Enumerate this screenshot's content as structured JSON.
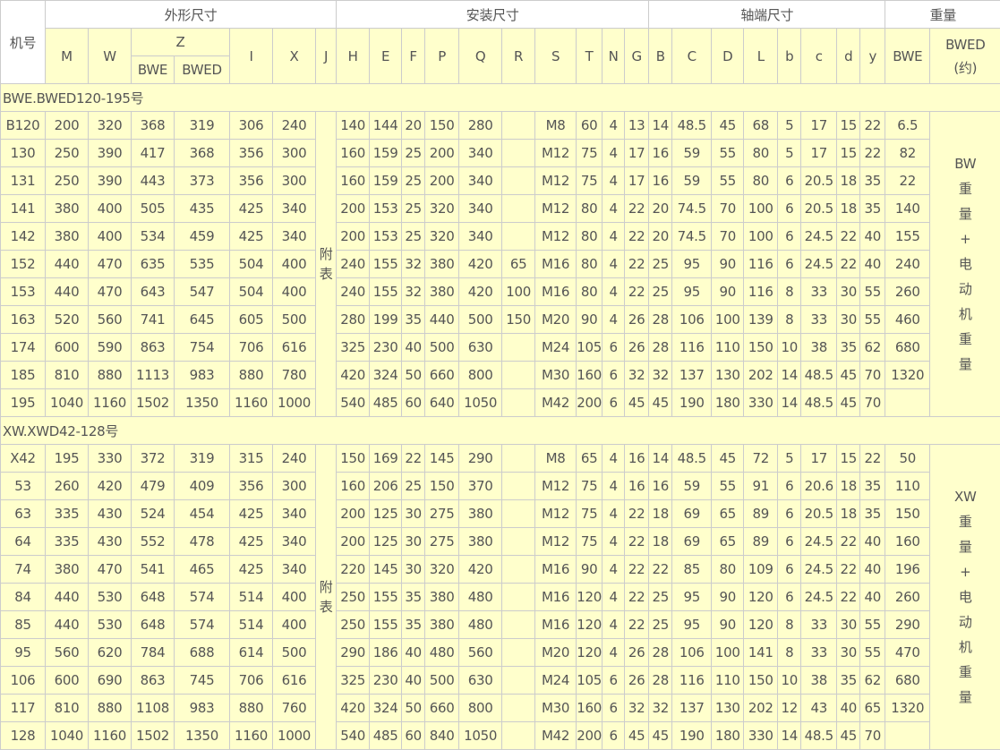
{
  "header": {
    "model": "机号",
    "groups": [
      "外形尺寸",
      "安装尺寸",
      "轴端尺寸",
      "重量"
    ],
    "outline_cols": [
      "M",
      "W",
      "Z",
      "I",
      "X",
      "J"
    ],
    "z_sub": [
      "BWE",
      "BWED"
    ],
    "install_cols": [
      "H",
      "E",
      "F",
      "P",
      "Q",
      "R",
      "S",
      "T",
      "N",
      "G"
    ],
    "shaft_cols": [
      "B",
      "C",
      "D",
      "L",
      "b",
      "c",
      "d",
      "y"
    ],
    "weight_cols": [
      "BWE",
      "BWED"
    ],
    "weight_approx": "(约)"
  },
  "colors": {
    "cell_bg": "#ffffcc",
    "border": "#cccccc",
    "text": "#555555"
  },
  "sections": [
    {
      "title": "BWE.BWED120-195号",
      "appendix": "附表",
      "weight_note": [
        "BW",
        "重",
        "量",
        "+",
        "电",
        "动",
        "机",
        "重",
        "量"
      ],
      "rows": [
        [
          "B120",
          "200",
          "320",
          "368",
          "319",
          "306",
          "240",
          "140",
          "144",
          "20",
          "150",
          "280",
          "",
          "M8",
          "60",
          "4",
          "13",
          "14",
          "48.5",
          "45",
          "68",
          "5",
          "17",
          "15",
          "22",
          "6.5"
        ],
        [
          "130",
          "250",
          "390",
          "417",
          "368",
          "356",
          "300",
          "160",
          "159",
          "25",
          "200",
          "340",
          "",
          "M12",
          "75",
          "4",
          "17",
          "16",
          "59",
          "55",
          "80",
          "5",
          "17",
          "15",
          "22",
          "82"
        ],
        [
          "131",
          "250",
          "390",
          "443",
          "373",
          "356",
          "300",
          "160",
          "159",
          "25",
          "200",
          "340",
          "",
          "M12",
          "75",
          "4",
          "17",
          "16",
          "59",
          "55",
          "80",
          "6",
          "20.5",
          "18",
          "35",
          "22"
        ],
        [
          "141",
          "380",
          "400",
          "505",
          "435",
          "425",
          "340",
          "200",
          "153",
          "25",
          "320",
          "340",
          "",
          "M12",
          "80",
          "4",
          "22",
          "20",
          "74.5",
          "70",
          "100",
          "6",
          "20.5",
          "18",
          "35",
          "140"
        ],
        [
          "142",
          "380",
          "400",
          "534",
          "459",
          "425",
          "340",
          "200",
          "153",
          "25",
          "320",
          "340",
          "",
          "M12",
          "80",
          "4",
          "22",
          "20",
          "74.5",
          "70",
          "100",
          "6",
          "24.5",
          "22",
          "40",
          "155"
        ],
        [
          "152",
          "440",
          "470",
          "635",
          "535",
          "504",
          "400",
          "240",
          "155",
          "32",
          "380",
          "420",
          "65",
          "M16",
          "80",
          "4",
          "22",
          "25",
          "95",
          "90",
          "116",
          "6",
          "24.5",
          "22",
          "40",
          "240"
        ],
        [
          "153",
          "440",
          "470",
          "643",
          "547",
          "504",
          "400",
          "240",
          "155",
          "32",
          "380",
          "420",
          "100",
          "M16",
          "80",
          "4",
          "22",
          "25",
          "95",
          "90",
          "116",
          "8",
          "33",
          "30",
          "55",
          "260"
        ],
        [
          "163",
          "520",
          "560",
          "741",
          "645",
          "605",
          "500",
          "280",
          "199",
          "35",
          "440",
          "500",
          "150",
          "M20",
          "90",
          "4",
          "26",
          "28",
          "106",
          "100",
          "139",
          "8",
          "33",
          "30",
          "55",
          "460"
        ],
        [
          "174",
          "600",
          "590",
          "863",
          "754",
          "706",
          "616",
          "325",
          "230",
          "40",
          "500",
          "630",
          "",
          "M24",
          "105",
          "6",
          "26",
          "28",
          "116",
          "110",
          "150",
          "10",
          "38",
          "35",
          "62",
          "680"
        ],
        [
          "185",
          "810",
          "880",
          "1113",
          "983",
          "880",
          "780",
          "420",
          "324",
          "50",
          "660",
          "800",
          "",
          "M30",
          "160",
          "6",
          "32",
          "32",
          "137",
          "130",
          "202",
          "14",
          "48.5",
          "45",
          "70",
          "1320"
        ],
        [
          "195",
          "1040",
          "1160",
          "1502",
          "1350",
          "1160",
          "1000",
          "540",
          "485",
          "60",
          "640",
          "1050",
          "",
          "M42",
          "200",
          "6",
          "45",
          "45",
          "190",
          "180",
          "330",
          "14",
          "48.5",
          "45",
          "70",
          ""
        ]
      ]
    },
    {
      "title": "XW.XWD42-128号",
      "appendix": "附表",
      "weight_note": [
        "XW",
        "重",
        "量",
        "+",
        "电",
        "动",
        "机",
        "重",
        "量"
      ],
      "rows": [
        [
          "X42",
          "195",
          "330",
          "372",
          "319",
          "315",
          "240",
          "150",
          "169",
          "22",
          "145",
          "290",
          "",
          "M8",
          "65",
          "4",
          "16",
          "14",
          "48.5",
          "45",
          "72",
          "5",
          "17",
          "15",
          "22",
          "50"
        ],
        [
          "53",
          "260",
          "420",
          "479",
          "409",
          "356",
          "300",
          "160",
          "206",
          "25",
          "150",
          "370",
          "",
          "M12",
          "75",
          "4",
          "16",
          "16",
          "59",
          "55",
          "91",
          "6",
          "20.6",
          "18",
          "35",
          "110"
        ],
        [
          "63",
          "335",
          "430",
          "524",
          "454",
          "425",
          "340",
          "200",
          "125",
          "30",
          "275",
          "380",
          "",
          "M12",
          "75",
          "4",
          "22",
          "18",
          "69",
          "65",
          "89",
          "6",
          "20.5",
          "18",
          "35",
          "150"
        ],
        [
          "64",
          "335",
          "430",
          "552",
          "478",
          "425",
          "340",
          "200",
          "125",
          "30",
          "275",
          "380",
          "",
          "M12",
          "75",
          "4",
          "22",
          "18",
          "69",
          "65",
          "89",
          "6",
          "24.5",
          "22",
          "40",
          "160"
        ],
        [
          "74",
          "380",
          "470",
          "541",
          "465",
          "425",
          "340",
          "220",
          "145",
          "30",
          "320",
          "420",
          "",
          "M16",
          "90",
          "4",
          "22",
          "22",
          "85",
          "80",
          "109",
          "6",
          "24.5",
          "22",
          "40",
          "196"
        ],
        [
          "84",
          "440",
          "530",
          "648",
          "574",
          "514",
          "400",
          "250",
          "155",
          "35",
          "380",
          "480",
          "",
          "M16",
          "120",
          "4",
          "22",
          "25",
          "95",
          "90",
          "120",
          "6",
          "24.5",
          "22",
          "40",
          "260"
        ],
        [
          "85",
          "440",
          "530",
          "648",
          "574",
          "514",
          "400",
          "250",
          "155",
          "35",
          "380",
          "480",
          "",
          "M16",
          "120",
          "4",
          "22",
          "25",
          "95",
          "90",
          "120",
          "8",
          "33",
          "30",
          "55",
          "290"
        ],
        [
          "95",
          "560",
          "620",
          "784",
          "688",
          "614",
          "500",
          "290",
          "186",
          "40",
          "480",
          "560",
          "",
          "M20",
          "120",
          "4",
          "26",
          "28",
          "106",
          "100",
          "141",
          "8",
          "33",
          "30",
          "55",
          "470"
        ],
        [
          "106",
          "600",
          "690",
          "863",
          "745",
          "706",
          "616",
          "325",
          "230",
          "40",
          "500",
          "630",
          "",
          "M24",
          "105",
          "6",
          "26",
          "28",
          "116",
          "110",
          "150",
          "10",
          "38",
          "35",
          "62",
          "680"
        ],
        [
          "117",
          "810",
          "880",
          "1108",
          "983",
          "880",
          "760",
          "420",
          "324",
          "50",
          "660",
          "800",
          "",
          "M30",
          "160",
          "6",
          "32",
          "32",
          "137",
          "130",
          "202",
          "12",
          "43",
          "40",
          "65",
          "1320"
        ],
        [
          "128",
          "1040",
          "1160",
          "1502",
          "1350",
          "1160",
          "1000",
          "540",
          "485",
          "60",
          "840",
          "1050",
          "",
          "M42",
          "200",
          "6",
          "45",
          "45",
          "190",
          "180",
          "330",
          "14",
          "48.5",
          "45",
          "70",
          ""
        ]
      ]
    }
  ]
}
